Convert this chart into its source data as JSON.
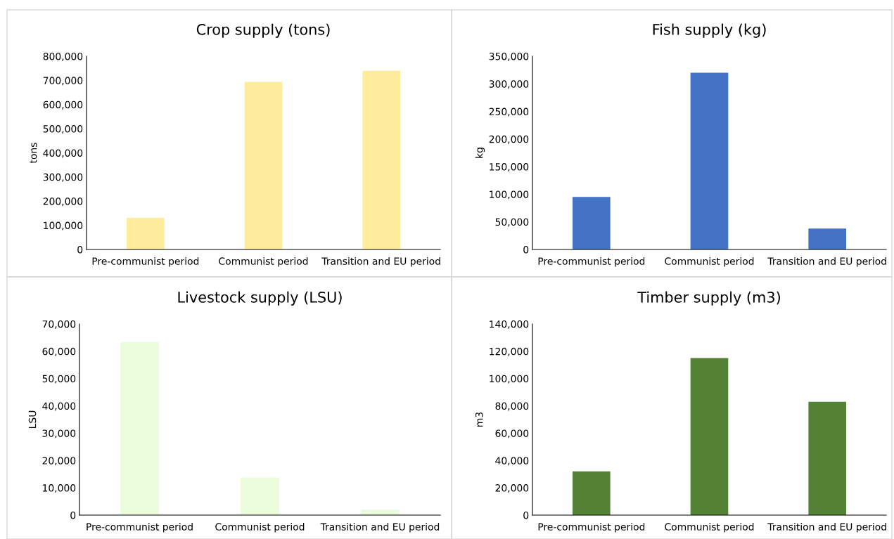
{
  "chart_data": [
    {
      "type": "bar",
      "title": "Crop supply (tons)",
      "ylabel": "tons",
      "categories": [
        "Pre-communist period",
        "Communist period",
        "Transition and EU period"
      ],
      "values": [
        131000,
        694000,
        740000
      ],
      "color": "#ffeb9c",
      "ylim": [
        0,
        800000
      ],
      "yticks": [
        0,
        {
          "value": 100000,
          "label": "100,000"
        },
        {
          "value": 200000,
          "label": "200,000"
        },
        {
          "value": 300000,
          "label": "300,000"
        },
        {
          "value": 400000,
          "label": "400,000"
        },
        {
          "value": 500000,
          "label": "500,000"
        },
        {
          "value": 600000,
          "label": "600,000"
        },
        {
          "value": 700000,
          "label": "700,000"
        },
        {
          "value": 800000,
          "label": "800,000"
        }
      ]
    },
    {
      "type": "bar",
      "title": "Fish supply (kg)",
      "ylabel": "kg",
      "categories": [
        "Pre-communist period",
        "Communist period",
        "Transition and EU period"
      ],
      "values": [
        95000,
        320000,
        38000
      ],
      "color": "#4472c4",
      "ylim": [
        0,
        350000
      ],
      "yticks": [
        0,
        {
          "value": 50000,
          "label": "50,000"
        },
        {
          "value": 100000,
          "label": "100,000"
        },
        {
          "value": 150000,
          "label": "150,000"
        },
        {
          "value": 200000,
          "label": "200,000"
        },
        {
          "value": 250000,
          "label": "250,000"
        },
        {
          "value": 300000,
          "label": "300,000"
        },
        {
          "value": 350000,
          "label": "350,000"
        }
      ]
    },
    {
      "type": "bar",
      "title": "Livestock supply (LSU)",
      "ylabel": "LSU",
      "categories": [
        "Pre-communist period",
        "Communist period",
        "Transition and EU period"
      ],
      "values": [
        63400,
        13800,
        2000
      ],
      "color": "#ebfcdc",
      "ylim": [
        0,
        70000
      ],
      "yticks": [
        0,
        {
          "value": 10000,
          "label": "10,000"
        },
        {
          "value": 20000,
          "label": "20,000"
        },
        {
          "value": 30000,
          "label": "30,000"
        },
        {
          "value": 40000,
          "label": "40,000"
        },
        {
          "value": 50000,
          "label": "50,000"
        },
        {
          "value": 60000,
          "label": "60,000"
        },
        {
          "value": 70000,
          "label": "70,000"
        }
      ]
    },
    {
      "type": "bar",
      "title": "Timber supply (m3)",
      "ylabel": "m3",
      "categories": [
        "Pre-communist period",
        "Communist period",
        "Transition and EU period"
      ],
      "values": [
        32000,
        115000,
        83000
      ],
      "color": "#548235",
      "ylim": [
        0,
        140000
      ],
      "yticks": [
        0,
        {
          "value": 20000,
          "label": "20,000"
        },
        {
          "value": 40000,
          "label": "40,000"
        },
        {
          "value": 60000,
          "label": "60,000"
        },
        {
          "value": 80000,
          "label": "80,000"
        },
        {
          "value": 100000,
          "label": "100,000"
        },
        {
          "value": 120000,
          "label": "120,000"
        },
        {
          "value": 140000,
          "label": "140,000"
        }
      ]
    }
  ]
}
